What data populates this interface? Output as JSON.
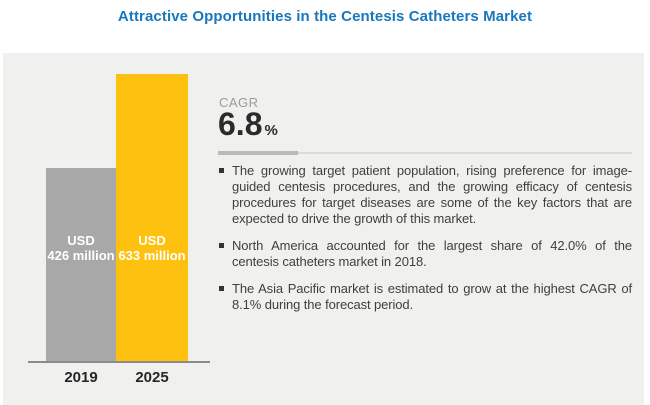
{
  "page": {
    "title": "Attractive Opportunities in the Centesis Catheters Market"
  },
  "cagr": {
    "label": "CAGR",
    "value": "6.8",
    "unit": "%"
  },
  "bullets": [
    "The growing target patient population, rising preference for image-guided centesis procedures, and the growing efficacy of centesis procedures for target diseases are some of the key factors that are expected to drive the growth of this market.",
    "North America accounted for the largest share of 42.0% of the centesis catheters market in 2018.",
    "The Asia Pacific market is estimated to grow at the highest CAGR of 8.1% during the forecast period."
  ],
  "chart_data": {
    "type": "bar",
    "categories": [
      "2019",
      "2025"
    ],
    "values": [
      426,
      633
    ],
    "unit": "USD million",
    "bar_labels": [
      [
        "USD",
        "426 million"
      ],
      [
        "USD",
        "633 million"
      ]
    ],
    "bar_colors": [
      "#A8A8A8",
      "#FEC110"
    ],
    "title": "Attractive Opportunities in the Centesis Catheters Market",
    "xlabel": "",
    "ylabel": "",
    "ylim": [
      0,
      633
    ],
    "grid": false,
    "legend": false
  },
  "colors": {
    "title_blue": "#1878BE",
    "panel_bg": "#F0F0EE",
    "bar_gray": "#A8A8A8",
    "bar_yellow": "#FEC110",
    "text_dark": "#2B2B2B",
    "text_body": "#3F3F3F",
    "cagr_label_gray": "#9C9C9C",
    "divider_light": "#DBDBD9",
    "divider_dark": "#BABABA",
    "axis_line": "#8B8B8B"
  }
}
